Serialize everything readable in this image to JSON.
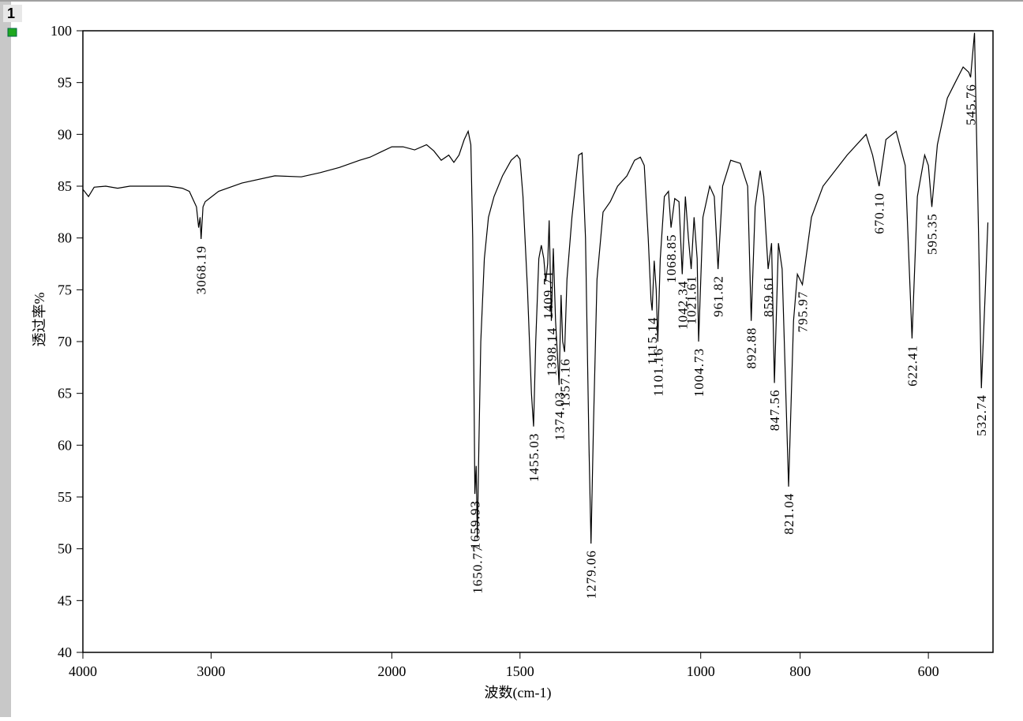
{
  "window_label": "1",
  "chart_data": {
    "type": "line",
    "color": "#000000",
    "xlabel": "波数(cm-1)",
    "ylabel": "透过率%",
    "xscale": "log",
    "xlim": [
      4000,
      519
    ],
    "ylim": [
      40,
      100
    ],
    "xticks": [
      4000,
      3000,
      2000,
      1500,
      1000,
      800,
      600
    ],
    "yticks": [
      40,
      45,
      50,
      55,
      60,
      65,
      70,
      75,
      80,
      85,
      90,
      95,
      100
    ],
    "x": [
      4000,
      3950,
      3900,
      3800,
      3700,
      3600,
      3500,
      3400,
      3300,
      3200,
      3150,
      3100,
      3085,
      3075,
      3068.19,
      3055,
      3040,
      2950,
      2800,
      2600,
      2450,
      2350,
      2250,
      2150,
      2100,
      2050,
      2000,
      1950,
      1900,
      1850,
      1820,
      1790,
      1760,
      1740,
      1720,
      1700,
      1685,
      1675,
      1668,
      1662,
      1659.93,
      1655,
      1650.77,
      1645,
      1638,
      1625,
      1610,
      1590,
      1560,
      1530,
      1510,
      1500,
      1490,
      1475,
      1462,
      1455.03,
      1448,
      1438,
      1430,
      1422,
      1416,
      1409.71,
      1405,
      1398.14,
      1392,
      1385,
      1374.03,
      1368,
      1363,
      1357.16,
      1350,
      1335,
      1315,
      1305,
      1295,
      1285,
      1279.06,
      1272,
      1262,
      1245,
      1225,
      1205,
      1180,
      1160,
      1145,
      1135,
      1125,
      1118,
      1115.14,
      1110,
      1105,
      1101.16,
      1095,
      1085,
      1075,
      1068.85,
      1060,
      1050,
      1042.34,
      1035,
      1028,
      1021.61,
      1015,
      1008,
      1004.73,
      995,
      980,
      970,
      961.82,
      952,
      935,
      915,
      900,
      892.88,
      885,
      875,
      868,
      859.61,
      853,
      847.56,
      840,
      833,
      821.04,
      812,
      805,
      795.97,
      780,
      760,
      720,
      690,
      680,
      670.1,
      660,
      645,
      632,
      622.41,
      615,
      605,
      600,
      595.35,
      588,
      575,
      565,
      555,
      548,
      545.76,
      541,
      536,
      532.74,
      528,
      525
    ],
    "values": [
      84.7,
      84.0,
      84.9,
      85.0,
      84.8,
      85.0,
      85.0,
      85.0,
      85.0,
      84.8,
      84.5,
      83.0,
      81.0,
      82.0,
      79.9,
      83.0,
      83.5,
      84.5,
      85.3,
      86.0,
      85.9,
      86.3,
      86.8,
      87.5,
      87.8,
      88.3,
      88.8,
      88.8,
      88.5,
      89.0,
      88.4,
      87.5,
      88.0,
      87.3,
      88.0,
      89.5,
      90.3,
      89.0,
      80.0,
      62.0,
      55.3,
      58.0,
      51.0,
      60.0,
      70.0,
      78.0,
      82.0,
      84.0,
      86.0,
      87.5,
      88.0,
      87.6,
      84.0,
      75.0,
      65.0,
      61.8,
      70.0,
      78.0,
      79.3,
      78.0,
      75.8,
      77.5,
      81.7,
      72.0,
      79.0,
      72.0,
      65.8,
      74.5,
      70.0,
      69.0,
      76.0,
      82.0,
      88.0,
      88.2,
      80.0,
      60.0,
      50.5,
      62.0,
      76.0,
      82.5,
      83.5,
      85.0,
      86.0,
      87.5,
      87.8,
      87.0,
      80.0,
      74.0,
      73.0,
      77.8,
      75.0,
      70.0,
      78.0,
      84.0,
      84.5,
      81.0,
      83.8,
      83.5,
      76.5,
      84.0,
      80.0,
      77.0,
      82.0,
      78.0,
      70.0,
      82.0,
      85.0,
      84.0,
      77.0,
      85.0,
      87.5,
      87.2,
      85.0,
      72.0,
      83.0,
      86.5,
      84.0,
      77.0,
      79.5,
      66.0,
      79.5,
      77.0,
      56.0,
      72.0,
      76.5,
      75.5,
      82.0,
      85.0,
      88.0,
      90.0,
      88.0,
      85.0,
      89.5,
      90.3,
      87.0,
      70.3,
      84.0,
      88.0,
      87.0,
      83.0,
      89.0,
      93.5,
      95.0,
      96.5,
      96.0,
      95.5,
      99.8,
      80.0,
      65.5,
      75.0,
      81.5
    ],
    "peaks": [
      3068.19,
      1659.93,
      1650.77,
      1455.03,
      1409.71,
      1398.14,
      1374.03,
      1357.16,
      1279.06,
      1115.14,
      1101.16,
      1068.85,
      1042.34,
      1021.61,
      1004.73,
      961.82,
      892.88,
      859.61,
      847.56,
      821.04,
      795.97,
      {
        "value": 670.1,
        "label": "670.10"
      },
      622.41,
      595.35,
      545.76,
      532.74
    ]
  }
}
